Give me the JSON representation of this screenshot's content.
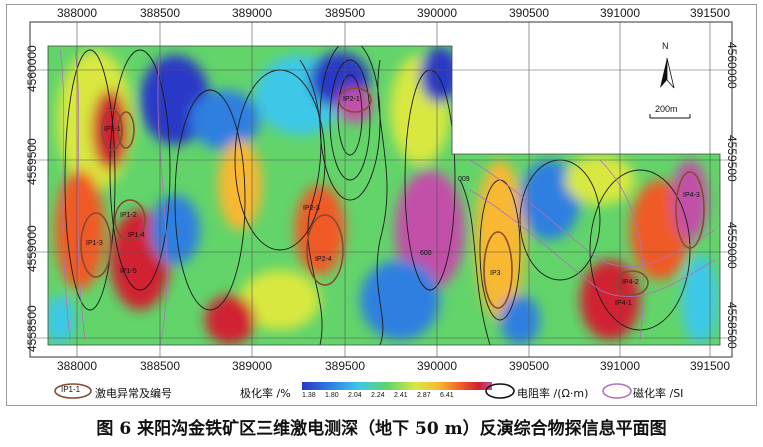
{
  "map": {
    "x_ticks": [
      "388000",
      "388500",
      "389000",
      "389500",
      "390000",
      "390500",
      "391000",
      "391500"
    ],
    "y_ticks": [
      "4560000",
      "4559500",
      "4559000",
      "4558500"
    ],
    "north_label": "N",
    "scale_label": "200m",
    "anomaly_labels": [
      "IP1-1",
      "IP1-2",
      "IP1-3",
      "IP1-4",
      "IP1-5",
      "IP2-1",
      "IP3",
      "IP4-1",
      "IP4-2",
      "IP4-3",
      "IP2-3",
      "IP2-4"
    ],
    "contour_labels": [
      "009",
      "600"
    ],
    "colors": {
      "ramp": [
        "#2a38c8",
        "#2f7fe0",
        "#3cc8e8",
        "#62d46a",
        "#d8e840",
        "#f8b830",
        "#f05a28",
        "#d02030",
        "#c24fa8"
      ],
      "resistivity_contour": "#1a1a1a",
      "susceptibility_contour": "#b070c0",
      "anomaly_outline": "#8a4a30"
    }
  },
  "legend": {
    "anomaly_label": "IP1-1",
    "anomaly_text": "激电异常及编号",
    "polarizability_title": "极化率 /%",
    "color_values": [
      "1.38",
      "1.80",
      "2.04",
      "2.24",
      "2.41",
      "2.87",
      "6.41"
    ],
    "resistivity_text": "电阻率 /(Ω·m)",
    "susceptibility_text": "磁化率 /SI"
  },
  "caption": "图 6   来阳沟金铁矿区三维激电测深（地下 50 m）反演综合物探信息平面图"
}
